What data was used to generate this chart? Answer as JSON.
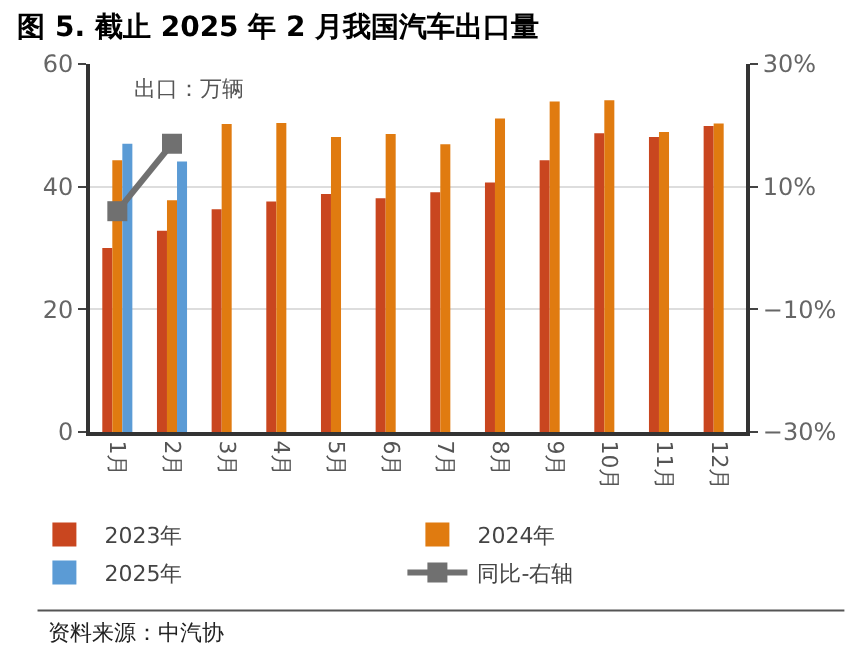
{
  "chart_data": {
    "type": "bar",
    "title": "图 5. 截止 2025 年 2 月我国汽车出口量",
    "categories": [
      "1月",
      "2月",
      "3月",
      "4月",
      "5月",
      "6月",
      "7月",
      "8月",
      "9月",
      "10月",
      "11月",
      "12月"
    ],
    "series": [
      {
        "name": "2023年",
        "color": "#c9461f",
        "values": [
          30.0,
          32.8,
          36.3,
          37.6,
          38.8,
          38.1,
          39.1,
          40.7,
          44.3,
          48.7,
          48.1,
          49.9
        ]
      },
      {
        "name": "2024年",
        "color": "#e07b10",
        "values": [
          44.3,
          37.8,
          50.2,
          50.4,
          48.1,
          48.6,
          46.9,
          51.1,
          53.9,
          54.1,
          48.9,
          50.3
        ]
      },
      {
        "name": "2025年",
        "color": "#5b9bd5",
        "values": [
          47.0,
          44.1,
          null,
          null,
          null,
          null,
          null,
          null,
          null,
          null,
          null,
          null
        ]
      },
      {
        "name": "同比-右轴",
        "type": "line",
        "axis": "y2",
        "color": "#707070",
        "marker": "square",
        "values": [
          6,
          17,
          null,
          null,
          null,
          null,
          null,
          null,
          null,
          null,
          null,
          null
        ]
      }
    ],
    "ylim": [
      0,
      60
    ],
    "yticks": [
      0,
      20,
      40,
      60
    ],
    "y2lim": [
      -30,
      30
    ],
    "y2ticks": [
      {
        "value": -30,
        "label": "−30%"
      },
      {
        "value": -10,
        "label": "−10%"
      },
      {
        "value": 10,
        "label": "10%"
      },
      {
        "value": 30,
        "label": "30%"
      }
    ],
    "grid": "y",
    "legend": "bottom",
    "annotations": [
      "出口：万辆",
      "资料来源：中汽协"
    ]
  }
}
